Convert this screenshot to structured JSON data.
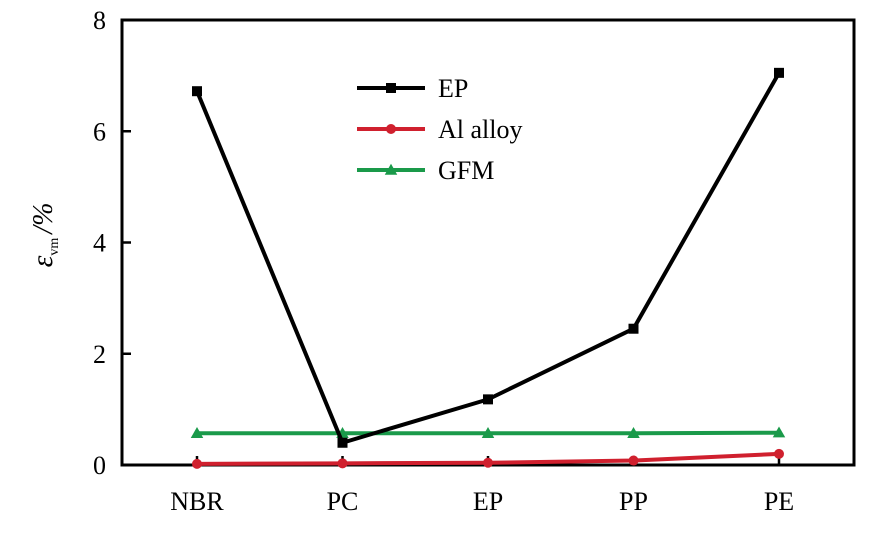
{
  "chart_data": {
    "type": "line",
    "categories": [
      "NBR",
      "PC",
      "EP",
      "PP",
      "PE"
    ],
    "ylim": [
      0,
      8
    ],
    "yticks": [
      "0",
      "2",
      "4",
      "6",
      "8"
    ],
    "ylabel": {
      "symbol": "ε",
      "subscript": "vm",
      "unit": "/%"
    },
    "xlabel": "",
    "legend_position": "upper-center",
    "grid": false,
    "series": [
      {
        "name": "EP",
        "values": [
          6.72,
          0.4,
          1.18,
          2.45,
          7.05
        ],
        "color": "#000000",
        "marker": "square"
      },
      {
        "name": "Al alloy",
        "values": [
          0.02,
          0.03,
          0.04,
          0.08,
          0.2
        ],
        "color": "#d0202e",
        "marker": "circle"
      },
      {
        "name": "GFM",
        "values": [
          0.57,
          0.57,
          0.57,
          0.57,
          0.58
        ],
        "color": "#1a9a4a",
        "marker": "triangle"
      }
    ]
  }
}
